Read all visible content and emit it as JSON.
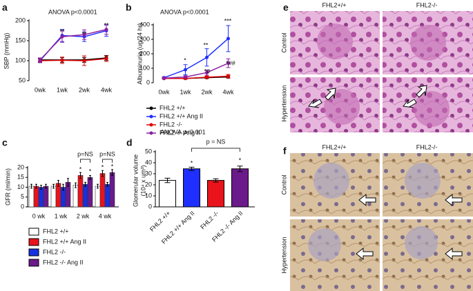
{
  "chart_data": [
    {
      "type": "line",
      "label": "a",
      "title": "ANOVA p<0.0001",
      "y_label": "SBP (mmHg)",
      "categories": [
        "0wk",
        "1wk",
        "2wk",
        "4wk"
      ],
      "ylim": [
        50,
        200
      ],
      "yticks": [
        50,
        100,
        150,
        200
      ],
      "series": [
        {
          "color": "#000000",
          "values": [
            102,
            102,
            102,
            107
          ],
          "errors": [
            4,
            6,
            6,
            6
          ]
        },
        {
          "color": "#1f2fff",
          "values": [
            100,
            163,
            160,
            175
          ],
          "errors": [
            5,
            15,
            12,
            14
          ]
        },
        {
          "color": "#e00000",
          "values": [
            100,
            101,
            100,
            105
          ],
          "errors": [
            4,
            8,
            12,
            7
          ]
        },
        {
          "color": "#8a1fa0",
          "values": [
            102,
            160,
            165,
            178
          ],
          "errors": [
            5,
            14,
            12,
            12
          ]
        }
      ],
      "annotations": [
        "**",
        "**",
        "**"
      ]
    },
    {
      "type": "line",
      "label": "b",
      "title": "ANOVA p<0.0001",
      "y_label": "Albuminuria  (ug/24 hr)",
      "categories": [
        "0wk",
        "1wk",
        "2wk",
        "4wk"
      ],
      "ylim": [
        0,
        400
      ],
      "yticks": [
        0,
        100,
        200,
        300,
        400
      ],
      "series": [
        {
          "name": "FHL2 +/+",
          "color": "#000000",
          "values": [
            30,
            30,
            35,
            40
          ],
          "errors": [
            4,
            5,
            6,
            8
          ]
        },
        {
          "name": "FHL2 +/+ Ang II",
          "color": "#1f2fff",
          "values": [
            35,
            90,
            175,
            305
          ],
          "errors": [
            5,
            35,
            60,
            90
          ]
        },
        {
          "name": "FHL2 -/-",
          "color": "#e00000",
          "values": [
            30,
            30,
            38,
            45
          ],
          "errors": [
            4,
            5,
            8,
            12
          ]
        },
        {
          "name": "FHL2 -/- Ang II",
          "color": "#8a1fa0",
          "values": [
            32,
            40,
            70,
            135
          ],
          "errors": [
            5,
            8,
            18,
            30
          ]
        }
      ],
      "annotations": [
        "*",
        "**",
        "***",
        "*#",
        "*##"
      ]
    },
    {
      "type": "grouped_bar",
      "label": "c",
      "y_label": "GFR (ml/min)",
      "categories": [
        "0 wk",
        "1 wk",
        "2 wk",
        "4 wk"
      ],
      "ylim": [
        0,
        20
      ],
      "yticks": [
        0,
        5,
        10,
        15,
        20
      ],
      "series": [
        {
          "name": "FHL2 +/+",
          "color": "#ffffff",
          "values": [
            10.5,
            10.5,
            11,
            10.5
          ],
          "errors": [
            1,
            1,
            1.2,
            1
          ]
        },
        {
          "name": "FHL2 +/+ Ang II",
          "color": "#e8131b",
          "values": [
            10.5,
            12,
            16,
            17
          ],
          "errors": [
            1,
            1.5,
            1.5,
            1.5
          ]
        },
        {
          "name": "FHL2 -/-",
          "color": "#1530e0",
          "values": [
            10,
            10,
            11.5,
            11.5
          ],
          "errors": [
            1,
            1.5,
            1,
            1
          ]
        },
        {
          "name": "FHL2 -/- Ang II",
          "color": "#6a1a8a",
          "values": [
            10.5,
            12.5,
            15,
            17.5
          ],
          "errors": [
            1,
            2,
            1,
            1.5
          ]
        }
      ],
      "annotations": [
        "*",
        "*",
        "*",
        "*",
        "p=NS",
        "p=NS"
      ]
    },
    {
      "type": "bar",
      "label": "d",
      "title": "ANOVA p<0.001",
      "y_label": [
        "Glomerular volume",
        "(10⁴ x um³)"
      ],
      "categories": [
        "FHL2 +/+",
        "FHL2 +/+ Ang II",
        "FHL2 -/-",
        "FHL2 -/- Ang II"
      ],
      "values": [
        24,
        34.5,
        24,
        34.5
      ],
      "errors": [
        2,
        1.5,
        1.5,
        2.5
      ],
      "colors": [
        "#ffffff",
        "#1f2fff",
        "#e8131b",
        "#6a1a8a"
      ],
      "ylim": [
        0,
        50
      ],
      "yticks": [
        0,
        10,
        20,
        30,
        40,
        50
      ],
      "annotations": [
        "*",
        "*",
        "p = NS"
      ]
    }
  ],
  "micrographs": [
    {
      "label": "e",
      "columns": [
        "FHL2+/+",
        "FHL2-/-"
      ],
      "rows": [
        "Control",
        "Hypertension"
      ]
    },
    {
      "label": "f",
      "columns": [
        "FHL2+/+",
        "FHL2-/-"
      ],
      "rows": [
        "Control",
        "Hypertension"
      ]
    }
  ]
}
